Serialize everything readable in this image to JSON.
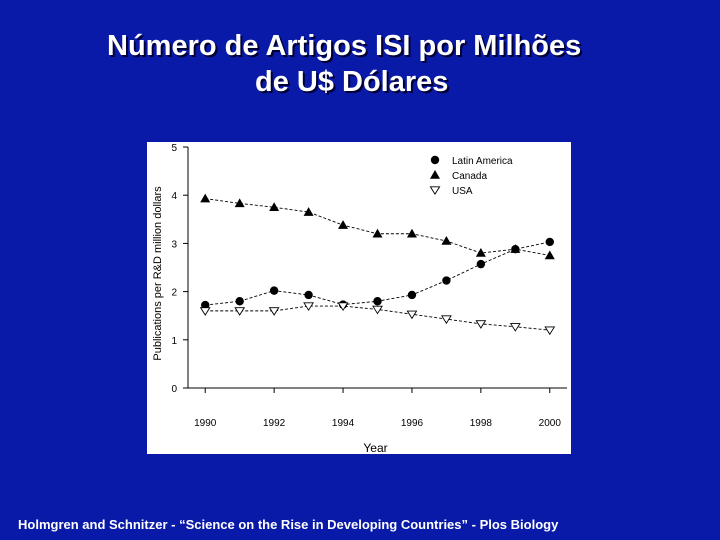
{
  "slide": {
    "title_line1": "Número de Artigos ISI por Milhões",
    "title_line2": "de U$ Dólares",
    "footer": "Holmgren and Schnitzer - “Science on the Rise in Developing Countries” - Plos Biology"
  },
  "chart_data": {
    "type": "line",
    "xlabel": "Year",
    "ylabel": "Publications per R&D million dollars",
    "xlim": [
      1989.5,
      2000.5
    ],
    "ylim": [
      0,
      5
    ],
    "x_ticks": [
      "1990",
      "1992",
      "1994",
      "1996",
      "1998",
      "2000"
    ],
    "y_ticks": [
      "0",
      "1",
      "2",
      "3",
      "4",
      "5"
    ],
    "grid": false,
    "legend_position": "top-right",
    "x": [
      1990,
      1991,
      1992,
      1993,
      1994,
      1995,
      1996,
      1997,
      1998,
      1999,
      2000
    ],
    "series": [
      {
        "name": "Latin America",
        "marker": "filled-circle",
        "values": [
          1.72,
          1.8,
          2.02,
          1.93,
          1.73,
          1.8,
          1.93,
          2.23,
          2.57,
          2.88,
          3.03
        ]
      },
      {
        "name": "Canada",
        "marker": "filled-triangle-up",
        "values": [
          3.93,
          3.83,
          3.75,
          3.65,
          3.38,
          3.2,
          3.2,
          3.05,
          2.8,
          2.88,
          2.75
        ]
      },
      {
        "name": "USA",
        "marker": "open-triangle-down",
        "values": [
          1.6,
          1.6,
          1.6,
          1.7,
          1.7,
          1.63,
          1.53,
          1.43,
          1.33,
          1.27,
          1.2
        ]
      }
    ]
  }
}
